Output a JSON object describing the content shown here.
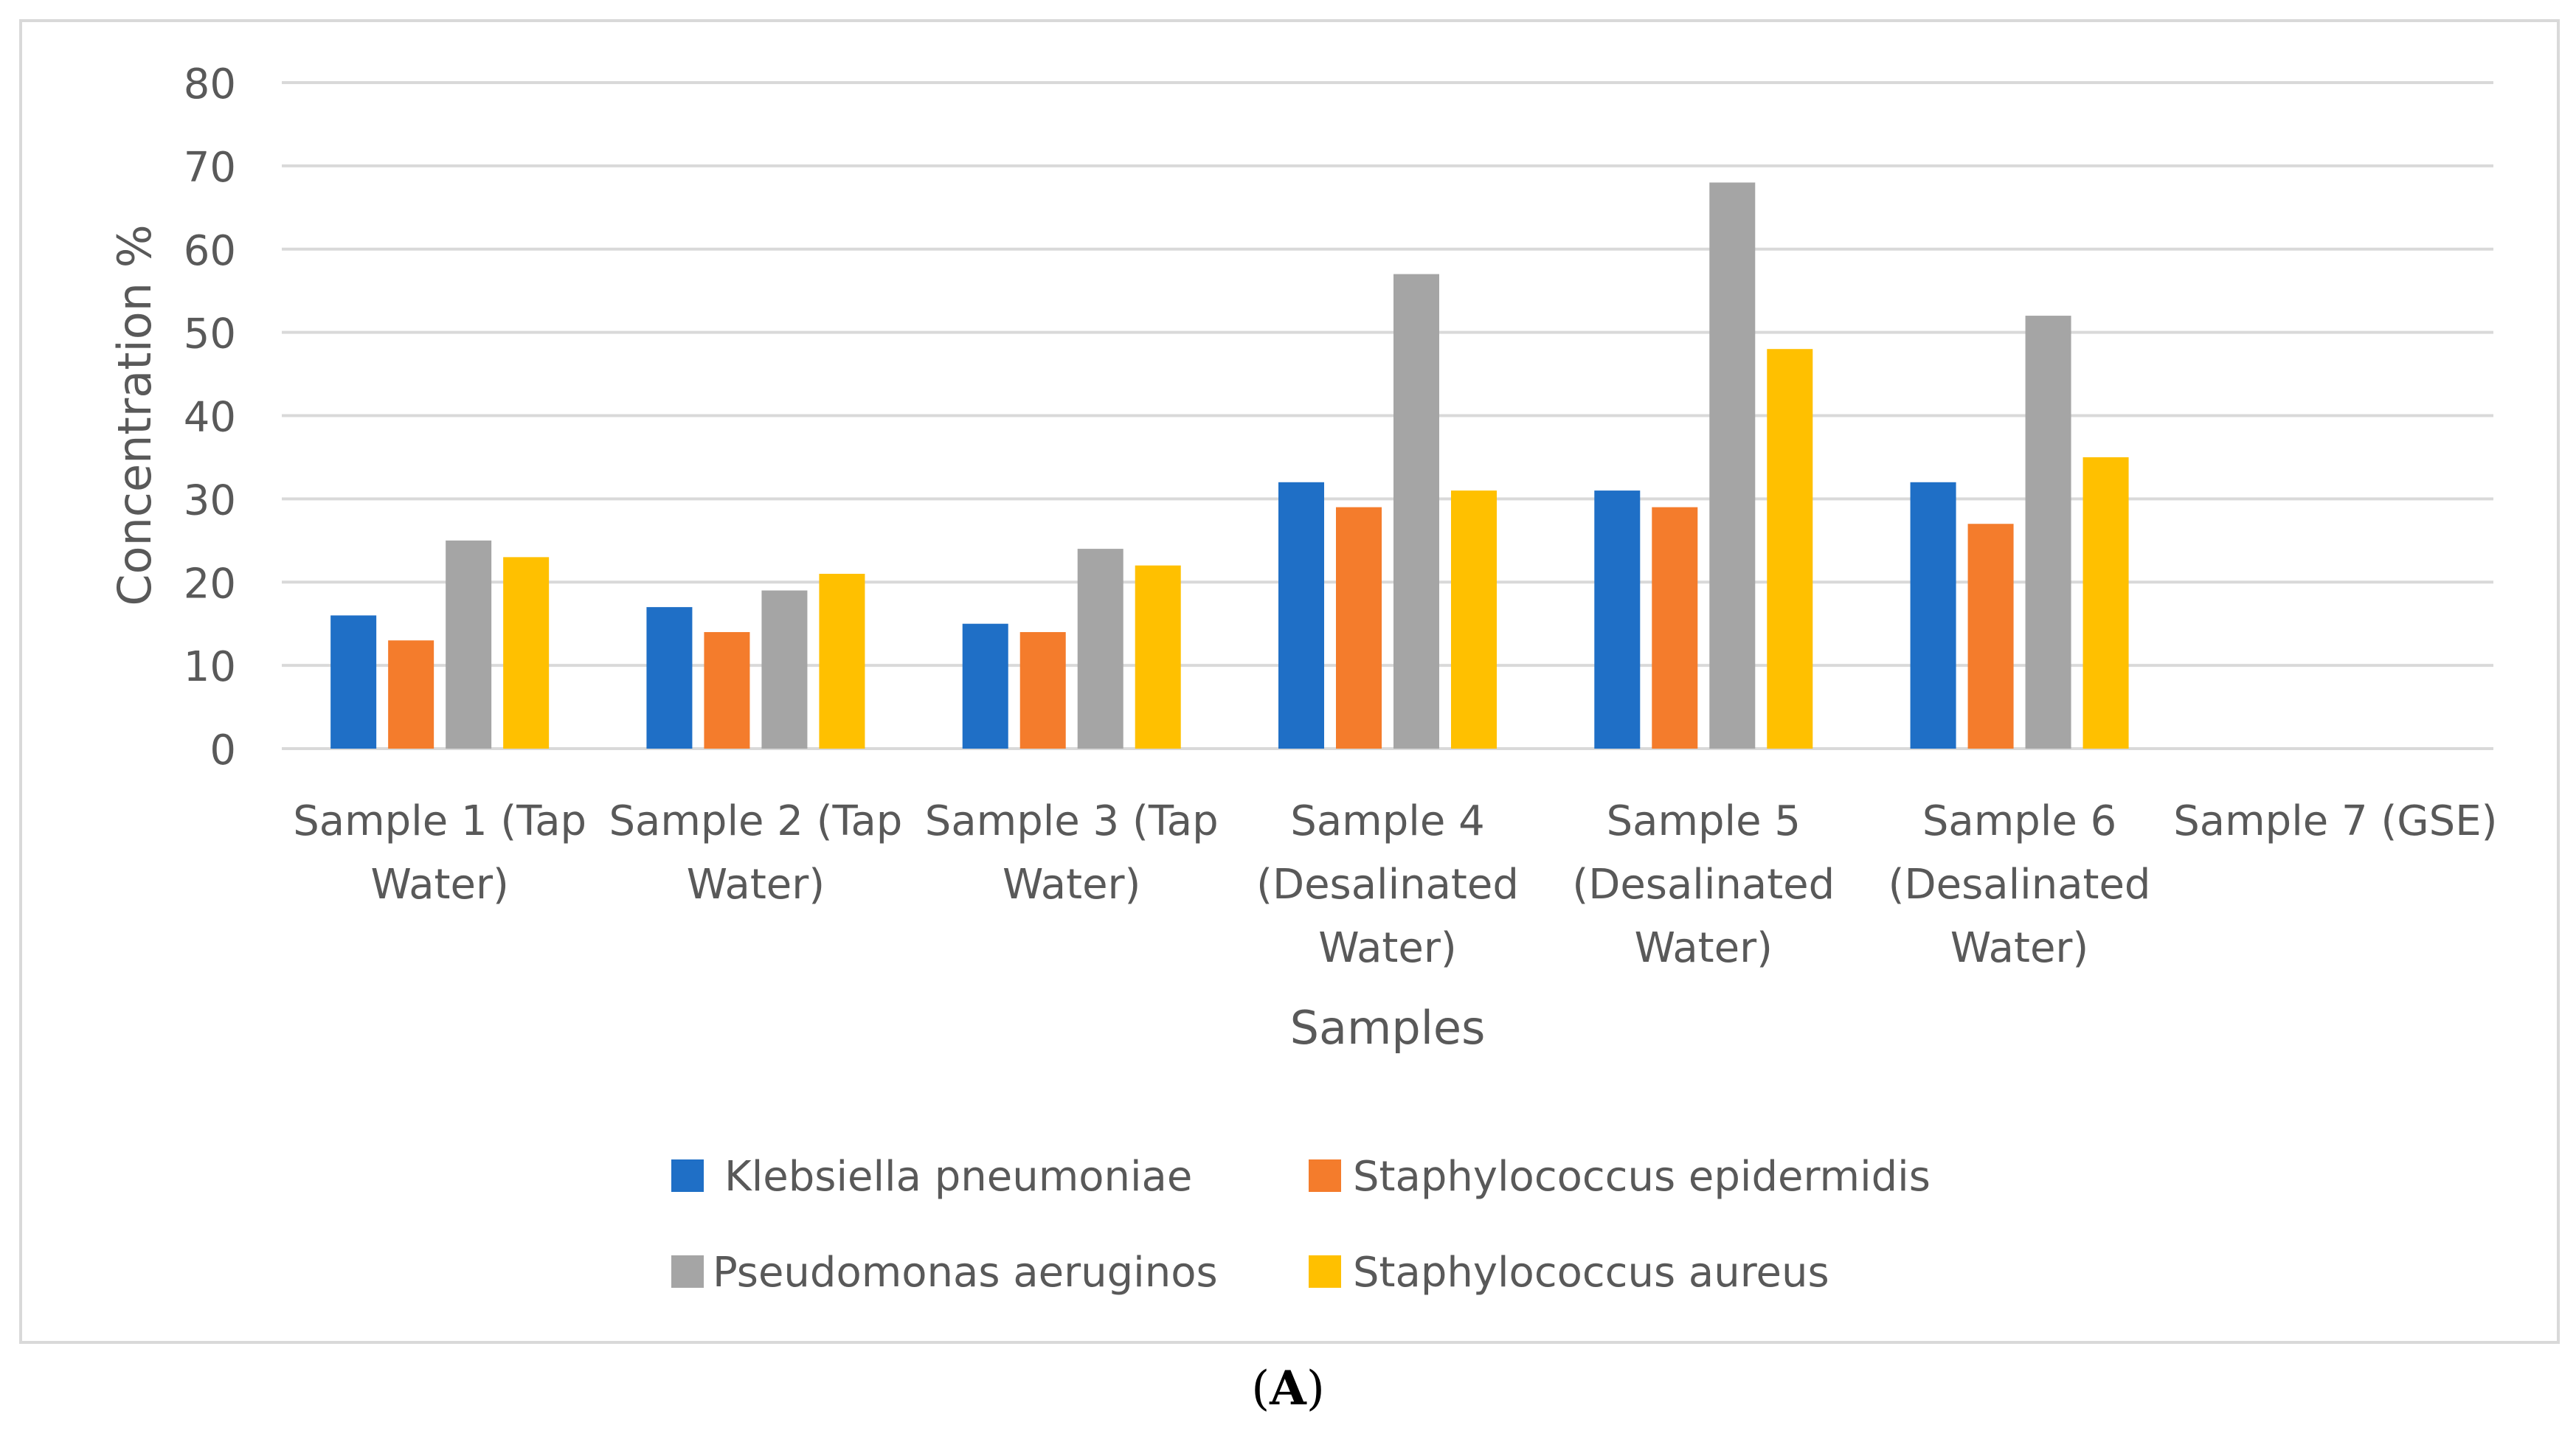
{
  "chart_data": {
    "type": "bar",
    "title": "",
    "xlabel": "Samples",
    "ylabel": "Concentration %",
    "ylim": [
      0,
      80
    ],
    "yticks": [
      0,
      10,
      20,
      30,
      40,
      50,
      60,
      70,
      80
    ],
    "grid": true,
    "legend_position": "bottom",
    "categories": [
      [
        "Sample 1 (Tap",
        "Water)"
      ],
      [
        "Sample 2 (Tap",
        "Water)"
      ],
      [
        "Sample 3 (Tap",
        "Water)"
      ],
      [
        "Sample 4",
        "(Desalinated",
        "Water)"
      ],
      [
        "Sample 5",
        "(Desalinated",
        "Water)"
      ],
      [
        "Sample 6",
        "(Desalinated",
        "Water)"
      ],
      [
        "Sample 7 (GSE)"
      ]
    ],
    "series": [
      {
        "name": "Klebsiella pneumoniae",
        "color": "#1f6fc6",
        "values": [
          16,
          17,
          15,
          32,
          31,
          32,
          0
        ]
      },
      {
        "name": "Staphylococcus epidermidis",
        "color": "#f47c2c",
        "values": [
          13,
          14,
          14,
          29,
          29,
          27,
          0
        ]
      },
      {
        "name": "Pseudomonas aeruginos",
        "color": "#a5a5a5",
        "values": [
          25,
          19,
          24,
          57,
          68,
          52,
          0
        ]
      },
      {
        "name": "Staphylococcus aureus",
        "color": "#ffc000",
        "values": [
          23,
          21,
          22,
          31,
          48,
          35,
          0
        ]
      }
    ]
  },
  "caption": {
    "open": "(",
    "letter": "A",
    "close": ")"
  }
}
